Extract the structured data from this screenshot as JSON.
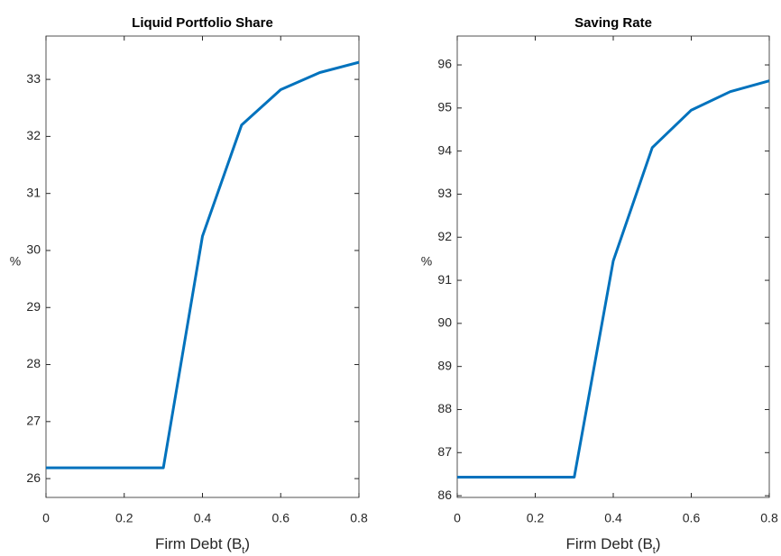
{
  "chart_data": [
    {
      "type": "line",
      "title": "Liquid Portfolio Share",
      "xlabel": "Firm Debt (B",
      "xlabel_sub": "t",
      "xlabel_end": ")",
      "ylabel": "%",
      "x": [
        0,
        0.1,
        0.2,
        0.3,
        0.4,
        0.5,
        0.6,
        0.7,
        0.8
      ],
      "series": [
        {
          "name": null,
          "color": "#0072bd",
          "values": [
            26.19,
            26.19,
            26.19,
            26.19,
            30.25,
            32.2,
            32.82,
            33.12,
            33.3
          ]
        }
      ],
      "xlim": [
        0,
        0.8
      ],
      "xticks": [
        0,
        0.2,
        0.4,
        0.6,
        0.8
      ],
      "ylim": [
        25.67,
        33.76
      ],
      "yticks": [
        26,
        27,
        28,
        29,
        30,
        31,
        32,
        33
      ],
      "grid": false
    },
    {
      "type": "line",
      "title": "Saving Rate",
      "xlabel": "Firm Debt (B",
      "xlabel_sub": "t",
      "xlabel_end": ")",
      "ylabel": "%",
      "x": [
        0,
        0.1,
        0.2,
        0.3,
        0.4,
        0.5,
        0.6,
        0.7,
        0.8
      ],
      "series": [
        {
          "name": null,
          "color": "#0072bd",
          "values": [
            86.43,
            86.43,
            86.43,
            86.43,
            91.45,
            94.08,
            94.95,
            95.38,
            95.63
          ]
        }
      ],
      "xlim": [
        0,
        0.8
      ],
      "xticks": [
        0,
        0.2,
        0.4,
        0.6,
        0.8
      ],
      "ylim": [
        85.96,
        96.67
      ],
      "yticks": [
        86,
        87,
        88,
        89,
        90,
        91,
        92,
        93,
        94,
        95,
        96
      ],
      "grid": false
    }
  ]
}
